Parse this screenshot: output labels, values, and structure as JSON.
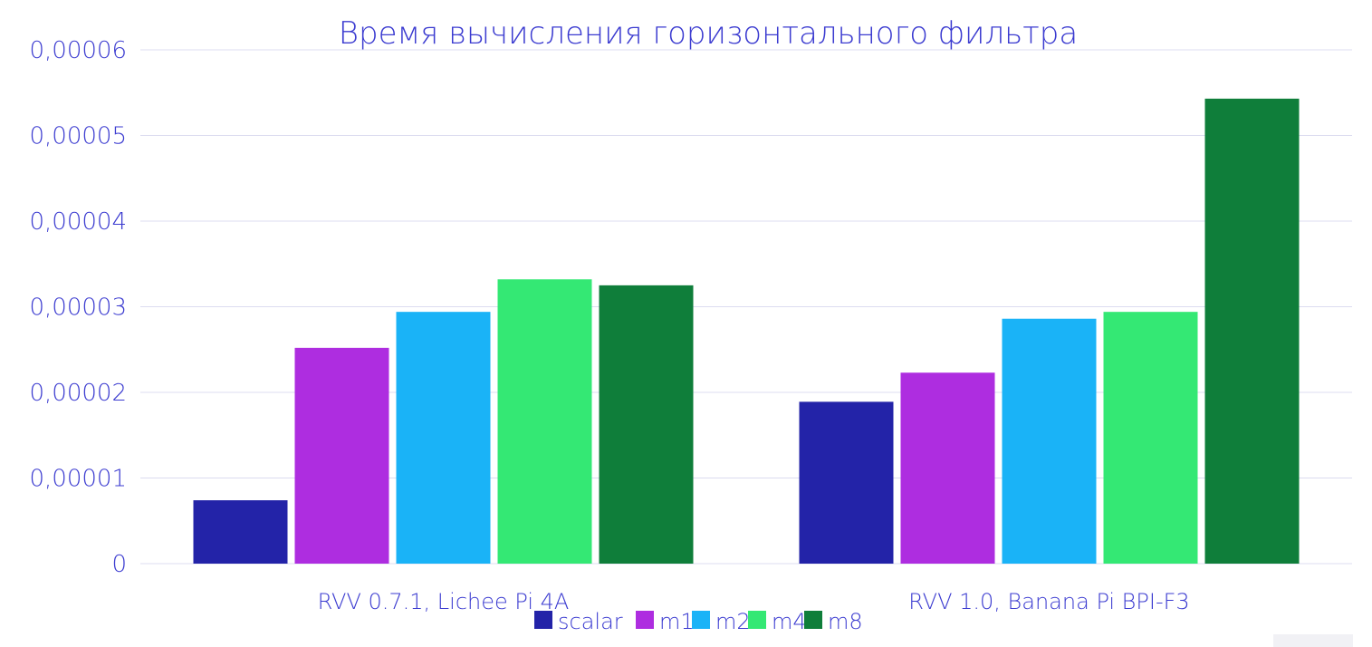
{
  "chart_data": {
    "type": "bar",
    "title": "Время вычисления горизонтального фильтра",
    "xlabel": "",
    "ylabel": "",
    "categories": [
      "RVV 0.7.1, Lichee Pi 4A",
      "RVV 1.0, Banana Pi BPI-F3"
    ],
    "series": [
      {
        "name": "scalar",
        "color": "#2323a8",
        "values": [
          7.4e-06,
          1.89e-05
        ]
      },
      {
        "name": "m1",
        "color": "#ae2de0",
        "values": [
          2.52e-05,
          2.23e-05
        ]
      },
      {
        "name": "m2",
        "color": "#1ab3f7",
        "values": [
          2.94e-05,
          2.86e-05
        ]
      },
      {
        "name": "m4",
        "color": "#34e874",
        "values": [
          3.32e-05,
          2.94e-05
        ]
      },
      {
        "name": "m8",
        "color": "#0f7e3a",
        "values": [
          3.25e-05,
          5.43e-05
        ]
      }
    ],
    "ylim": [
      0,
      6e-05
    ],
    "yticks": [
      0,
      1e-05,
      2e-05,
      3e-05,
      4e-05,
      5e-05,
      6e-05
    ],
    "ytick_labels": [
      "0",
      "0,00001",
      "0,00002",
      "0,00003",
      "0,00004",
      "0,00005",
      "0,00006"
    ],
    "grid": true,
    "legend_position": "bottom"
  },
  "page": {
    "badge_color": "#f1f1f5"
  }
}
